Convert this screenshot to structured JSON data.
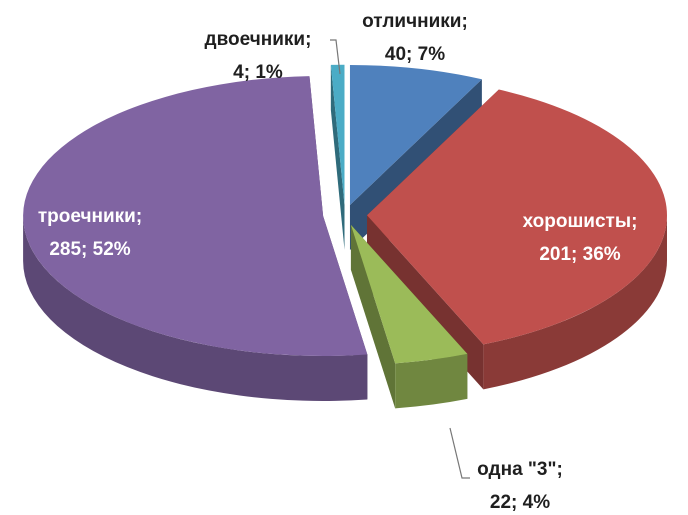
{
  "chart_data": {
    "type": "pie3d",
    "categories": [
      "отличники;",
      "хорошисты;",
      "одна \"3\";",
      "троечники;",
      "двоечники;"
    ],
    "values": [
      40,
      201,
      22,
      285,
      4
    ],
    "value_labels": [
      "40; 7%",
      "201; 36%",
      "22; 4%",
      "285; 52%",
      "4; 1%"
    ],
    "colors": [
      "#4f81bd",
      "#c0504d",
      "#9bbb59",
      "#8064a2",
      "#4bacc6"
    ]
  }
}
